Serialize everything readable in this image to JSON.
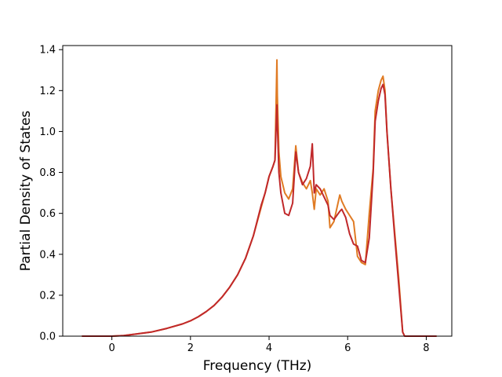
{
  "chart_data": {
    "type": "line",
    "title": "",
    "xlabel": "Frequency (THz)",
    "ylabel": "Partial Density of States",
    "xlim": [
      -1.25,
      8.65
    ],
    "ylim": [
      0.0,
      1.42
    ],
    "xticks": [
      0,
      2,
      4,
      6,
      8
    ],
    "xtick_labels": [
      "0",
      "2",
      "4",
      "6",
      "8"
    ],
    "yticks": [
      0.0,
      0.2,
      0.4,
      0.6,
      0.8,
      1.0,
      1.2,
      1.4
    ],
    "ytick_labels": [
      "0.0",
      "0.2",
      "0.4",
      "0.6",
      "0.8",
      "1.0",
      "1.2",
      "1.4"
    ],
    "grid": false,
    "legend": "none",
    "series": [
      {
        "color": "#e07b24",
        "x": [
          -0.75,
          0.0,
          0.3,
          0.6,
          1.0,
          1.4,
          1.8,
          2.0,
          2.2,
          2.4,
          2.6,
          2.8,
          3.0,
          3.2,
          3.4,
          3.6,
          3.8,
          3.9,
          4.0,
          4.1,
          4.15,
          4.2,
          4.21,
          4.25,
          4.3,
          4.4,
          4.5,
          4.6,
          4.68,
          4.75,
          4.85,
          4.95,
          5.05,
          5.1,
          5.15,
          5.2,
          5.3,
          5.4,
          5.5,
          5.55,
          5.65,
          5.8,
          5.85,
          5.95,
          6.05,
          6.15,
          6.25,
          6.35,
          6.45,
          6.55,
          6.65,
          6.7,
          6.78,
          6.85,
          6.9,
          6.95,
          7.0,
          7.1,
          7.2,
          7.3,
          7.4,
          7.45,
          7.5,
          7.6,
          8.0,
          8.25
        ],
        "values": [
          0.0,
          0.0,
          0.003,
          0.01,
          0.02,
          0.038,
          0.06,
          0.075,
          0.095,
          0.12,
          0.15,
          0.19,
          0.24,
          0.3,
          0.38,
          0.49,
          0.63,
          0.7,
          0.78,
          0.83,
          0.86,
          1.35,
          1.18,
          0.9,
          0.78,
          0.7,
          0.67,
          0.72,
          0.93,
          0.8,
          0.75,
          0.72,
          0.76,
          0.7,
          0.62,
          0.72,
          0.69,
          0.72,
          0.66,
          0.53,
          0.56,
          0.69,
          0.66,
          0.62,
          0.59,
          0.56,
          0.39,
          0.36,
          0.35,
          0.6,
          0.82,
          1.1,
          1.2,
          1.25,
          1.27,
          1.2,
          1.0,
          0.72,
          0.5,
          0.28,
          0.02,
          0.0,
          0.0,
          0.0,
          0.0,
          0.0
        ]
      },
      {
        "color": "#c0282a",
        "x": [
          -0.75,
          0.0,
          0.3,
          0.6,
          1.0,
          1.4,
          1.8,
          2.0,
          2.2,
          2.4,
          2.6,
          2.8,
          3.0,
          3.2,
          3.4,
          3.6,
          3.8,
          3.9,
          4.0,
          4.1,
          4.15,
          4.2,
          4.21,
          4.25,
          4.3,
          4.4,
          4.5,
          4.6,
          4.68,
          4.75,
          4.85,
          4.95,
          5.05,
          5.1,
          5.15,
          5.2,
          5.3,
          5.4,
          5.5,
          5.55,
          5.65,
          5.8,
          5.85,
          5.95,
          6.05,
          6.15,
          6.25,
          6.35,
          6.45,
          6.55,
          6.65,
          6.7,
          6.78,
          6.85,
          6.9,
          6.95,
          7.0,
          7.1,
          7.2,
          7.3,
          7.4,
          7.45,
          7.5,
          7.6,
          8.0,
          8.25
        ],
        "values": [
          0.0,
          0.0,
          0.003,
          0.01,
          0.02,
          0.038,
          0.06,
          0.075,
          0.095,
          0.12,
          0.15,
          0.19,
          0.24,
          0.3,
          0.38,
          0.49,
          0.64,
          0.7,
          0.78,
          0.83,
          0.86,
          1.13,
          1.05,
          0.8,
          0.7,
          0.6,
          0.59,
          0.65,
          0.9,
          0.8,
          0.74,
          0.77,
          0.83,
          0.94,
          0.7,
          0.74,
          0.72,
          0.68,
          0.64,
          0.59,
          0.57,
          0.61,
          0.62,
          0.58,
          0.5,
          0.45,
          0.44,
          0.37,
          0.36,
          0.48,
          0.8,
          1.05,
          1.15,
          1.21,
          1.23,
          1.18,
          1.0,
          0.72,
          0.48,
          0.25,
          0.02,
          0.0,
          0.0,
          0.0,
          0.0,
          0.0
        ]
      }
    ]
  }
}
